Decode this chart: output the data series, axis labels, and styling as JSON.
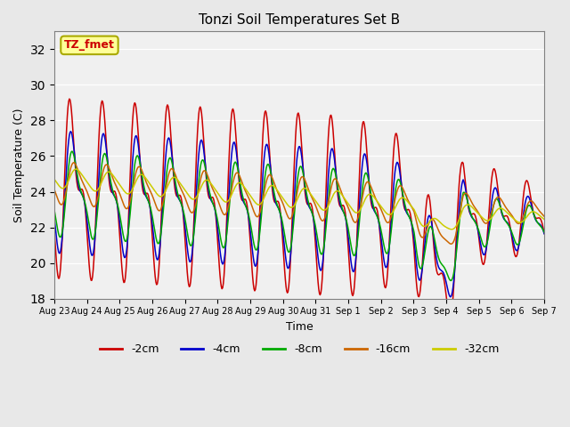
{
  "title": "Tonzi Soil Temperatures Set B",
  "xlabel": "Time",
  "ylabel": "Soil Temperature (C)",
  "ylim": [
    18,
    33
  ],
  "yticks": [
    18,
    20,
    22,
    24,
    26,
    28,
    30,
    32
  ],
  "bg_color": "#e8e8e8",
  "plot_bg_color": "#f0f0f0",
  "grid_color": "white",
  "line_colors": {
    "-2cm": "#cc0000",
    "-4cm": "#0000cc",
    "-8cm": "#00aa00",
    "-16cm": "#cc6600",
    "-32cm": "#cccc00"
  },
  "legend_label_text": "TZ_fmet",
  "x_tick_labels": [
    "Aug 23",
    "Aug 24",
    "Aug 25",
    "Aug 26",
    "Aug 27",
    "Aug 28",
    "Aug 29",
    "Aug 30",
    "Aug 31",
    "Sep 1",
    "Sep 2",
    "Sep 3",
    "Sep 4",
    "Sep 5",
    "Sep 6",
    "Sep 7"
  ],
  "series_labels": [
    "-2cm",
    "-4cm",
    "-8cm",
    "-16cm",
    "-32cm"
  ]
}
